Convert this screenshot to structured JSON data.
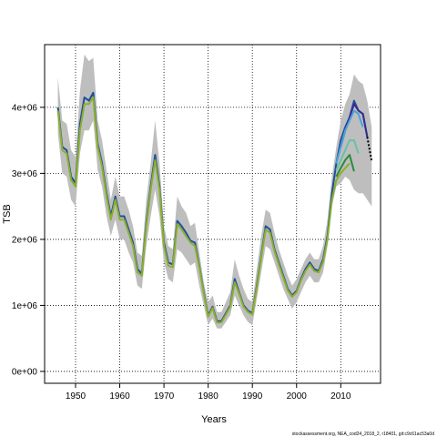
{
  "chart_data": {
    "type": "line",
    "title": "",
    "xlabel": "Years",
    "ylabel": "TSB",
    "xlim": [
      1943,
      2019
    ],
    "ylim": [
      -180000,
      4950000
    ],
    "xticks": [
      1950,
      1960,
      1970,
      1980,
      1990,
      2000,
      2010
    ],
    "xtick_labels": [
      "1950",
      "1960",
      "1970",
      "1980",
      "1990",
      "2000",
      "2010"
    ],
    "yticks": [
      0,
      1000000,
      2000000,
      3000000,
      4000000
    ],
    "ytick_labels": [
      "0e+00",
      "1e+06",
      "2e+06",
      "3e+06",
      "4e+06"
    ],
    "grid": true,
    "footer": "stockassessment.org, NEA_cod24_2018_2, r18401, git:c9c61ac53a0d",
    "colors": {
      "band": "#bebebe",
      "main": "#1f4e9c",
      "r2017": "#3a2a8f",
      "r2016": "#4da3d9",
      "r2015": "#66c2a5",
      "r2014": "#2a8a3a",
      "r2013": "#8ab02a",
      "forecast": "#000000"
    },
    "band": {
      "x": [
        1946,
        1947,
        1948,
        1949,
        1950,
        1951,
        1952,
        1953,
        1954,
        1955,
        1956,
        1957,
        1958,
        1959,
        1960,
        1961,
        1962,
        1963,
        1964,
        1965,
        1966,
        1967,
        1968,
        1969,
        1970,
        1971,
        1972,
        1973,
        1974,
        1975,
        1976,
        1977,
        1978,
        1979,
        1980,
        1981,
        1982,
        1983,
        1984,
        1985,
        1986,
        1987,
        1988,
        1989,
        1990,
        1991,
        1992,
        1993,
        1994,
        1995,
        1996,
        1997,
        1998,
        1999,
        2000,
        2001,
        2002,
        2003,
        2004,
        2005,
        2006,
        2007,
        2008,
        2009,
        2010,
        2011,
        2012,
        2013,
        2014,
        2015,
        2016,
        2017
      ],
      "lower": [
        3600000,
        3000000,
        2950000,
        2600000,
        2500000,
        3300000,
        3650000,
        3650000,
        3800000,
        3050000,
        2800000,
        2350000,
        2050000,
        2300000,
        2000000,
        2000000,
        1800000,
        1650000,
        1300000,
        1250000,
        1900000,
        2350000,
        2750000,
        2350000,
        1650000,
        1400000,
        1350000,
        1850000,
        1800000,
        1700000,
        1600000,
        1650000,
        1300000,
        1000000,
        700000,
        800000,
        650000,
        650000,
        750000,
        850000,
        1150000,
        1000000,
        850000,
        750000,
        700000,
        1100000,
        1500000,
        1900000,
        1850000,
        1650000,
        1450000,
        1250000,
        1100000,
        950000,
        1050000,
        1200000,
        1350000,
        1450000,
        1350000,
        1350000,
        1500000,
        1900000,
        2500000,
        2800000,
        2850000,
        2950000,
        2900000,
        2750000,
        2700000,
        2700000,
        2600000,
        2500000
      ],
      "upper": [
        4450000,
        3800000,
        3750000,
        3350000,
        3250000,
        4250000,
        4800000,
        4700000,
        4750000,
        3800000,
        3500000,
        3050000,
        2600000,
        2950000,
        2650000,
        2650000,
        2450000,
        2200000,
        1800000,
        1750000,
        2600000,
        3150000,
        3800000,
        3150000,
        2200000,
        1900000,
        1850000,
        2650000,
        2500000,
        2400000,
        2200000,
        2250000,
        1800000,
        1350000,
        1050000,
        1150000,
        900000,
        900000,
        1050000,
        1200000,
        1700000,
        1450000,
        1250000,
        1100000,
        1050000,
        1550000,
        2050000,
        2450000,
        2400000,
        2100000,
        1850000,
        1650000,
        1450000,
        1300000,
        1400000,
        1550000,
        1700000,
        1800000,
        1700000,
        1700000,
        1900000,
        2300000,
        2950000,
        3400000,
        3800000,
        4050000,
        4200000,
        4500000,
        4400000,
        4350000,
        4100000,
        3700000
      ]
    },
    "series": [
      {
        "key": "main",
        "x": [
          1946,
          1947,
          1948,
          1949,
          1950,
          1951,
          1952,
          1953,
          1954,
          1955,
          1956,
          1957,
          1958,
          1959,
          1960,
          1961,
          1962,
          1963,
          1964,
          1965,
          1966,
          1967,
          1968,
          1969,
          1970,
          1971,
          1972,
          1973,
          1974,
          1975,
          1976,
          1977,
          1978,
          1979,
          1980,
          1981,
          1982,
          1983,
          1984,
          1985,
          1986,
          1987,
          1988,
          1989,
          1990,
          1991,
          1992,
          1993,
          1994,
          1995,
          1996,
          1997,
          1998,
          1999,
          2000,
          2001,
          2002,
          2003,
          2004,
          2005,
          2006,
          2007,
          2008,
          2009,
          2010,
          2011,
          2012,
          2013,
          2014,
          2015,
          2016
        ],
        "values": [
          4000000,
          3400000,
          3350000,
          2950000,
          2850000,
          3750000,
          4150000,
          4100000,
          4220000,
          3450000,
          3150000,
          2700000,
          2350000,
          2650000,
          2350000,
          2350000,
          2150000,
          1950000,
          1550000,
          1480000,
          2250000,
          2800000,
          3280000,
          2800000,
          1950000,
          1650000,
          1620000,
          2280000,
          2200000,
          2100000,
          1980000,
          1950000,
          1600000,
          1200000,
          850000,
          980000,
          760000,
          760000,
          880000,
          1000000,
          1400000,
          1200000,
          1000000,
          920000,
          880000,
          1300000,
          1750000,
          2200000,
          2150000,
          1850000,
          1650000,
          1450000,
          1250000,
          1150000,
          1220000,
          1400000,
          1550000,
          1650000,
          1550000,
          1520000,
          1700000,
          2050000,
          2700000,
          3150000,
          3500000,
          3700000,
          3850000,
          4100000,
          3950000,
          3900000,
          3550000
        ]
      },
      {
        "key": "r2017",
        "x": [
          2010,
          2011,
          2012,
          2013,
          2014,
          2015,
          2016
        ],
        "values": [
          3400000,
          3650000,
          3850000,
          4050000,
          3950000,
          3900000,
          3550000
        ]
      },
      {
        "key": "r2016",
        "x": [
          2009,
          2010,
          2011,
          2012,
          2013,
          2014,
          2015
        ],
        "values": [
          3150000,
          3400000,
          3650000,
          3800000,
          3950000,
          3900000,
          3700000
        ]
      },
      {
        "key": "r2015",
        "x": [
          2009,
          2010,
          2011,
          2012,
          2013,
          2014
        ],
        "values": [
          3050000,
          3200000,
          3350000,
          3500000,
          3500000,
          3300000
        ]
      },
      {
        "key": "r2014",
        "x": [
          2009,
          2010,
          2011,
          2012,
          2013
        ],
        "values": [
          2950000,
          3080000,
          3200000,
          3280000,
          3030000
        ]
      },
      {
        "key": "r2013",
        "x": [
          1946,
          1947,
          1948,
          1949,
          1950,
          1951,
          1952,
          1953,
          1954,
          1955,
          1956,
          1957,
          1958,
          1959,
          1960,
          1961,
          1962,
          1963,
          1964,
          1965,
          1966,
          1967,
          1968,
          1969,
          1970,
          1971,
          1972,
          1973,
          1974,
          1975,
          1976,
          1977,
          1978,
          1979,
          1980,
          1981,
          1982,
          1983,
          1984,
          1985,
          1986,
          1987,
          1988,
          1989,
          1990,
          1991,
          1992,
          1993,
          1994,
          1995,
          1996,
          1997,
          1998,
          1999,
          2000,
          2001,
          2002,
          2003,
          2004,
          2005,
          2006,
          2007,
          2008,
          2009,
          2010,
          2011,
          2012
        ],
        "values": [
          3950000,
          3350000,
          3300000,
          2900000,
          2800000,
          3650000,
          4050000,
          4050000,
          4150000,
          3400000,
          3100000,
          2650000,
          2300000,
          2600000,
          2300000,
          2300000,
          2100000,
          1900000,
          1500000,
          1450000,
          2200000,
          2750000,
          3200000,
          2750000,
          1900000,
          1600000,
          1580000,
          2230000,
          2150000,
          2050000,
          1950000,
          1900000,
          1580000,
          1180000,
          830000,
          960000,
          740000,
          740000,
          860000,
          980000,
          1350000,
          1180000,
          980000,
          900000,
          860000,
          1270000,
          1720000,
          2150000,
          2100000,
          1820000,
          1620000,
          1420000,
          1230000,
          1130000,
          1200000,
          1380000,
          1520000,
          1620000,
          1520000,
          1500000,
          1660000,
          2000000,
          2600000,
          2900000,
          3000000,
          3080000,
          3150000
        ]
      },
      {
        "key": "forecast",
        "dashed": true,
        "x": [
          2016,
          2017
        ],
        "values": [
          3550000,
          3180000
        ]
      }
    ]
  }
}
